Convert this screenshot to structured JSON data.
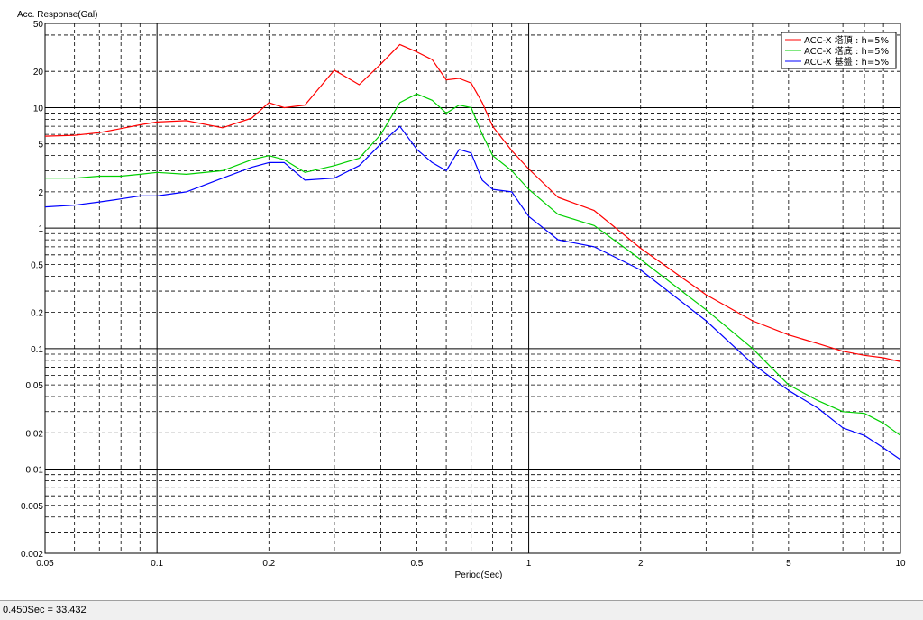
{
  "chart_data": {
    "type": "line",
    "ylabel": "Acc. Response(Gal)",
    "xlabel": "Period(Sec)",
    "x_scale": "log",
    "y_scale": "log",
    "xlim": [
      0.05,
      10
    ],
    "ylim": [
      0.002,
      50
    ],
    "grid": true,
    "legend_position": "top-right",
    "x_tick_labels": [
      "0.05",
      "0.1",
      "0.2",
      "0.5",
      "1",
      "2",
      "5",
      "10"
    ],
    "y_tick_labels": [
      "50",
      "20",
      "10",
      "5",
      "2",
      "1",
      "0.5",
      "0.2",
      "0.1",
      "0.05",
      "0.02",
      "0.01",
      "0.005",
      "0.002"
    ],
    "series": [
      {
        "name": "ACC-X 塔頂 : h=5%",
        "color": "#ff0000",
        "x": [
          0.05,
          0.06,
          0.07,
          0.08,
          0.09,
          0.1,
          0.12,
          0.15,
          0.18,
          0.2,
          0.22,
          0.25,
          0.3,
          0.35,
          0.4,
          0.45,
          0.5,
          0.55,
          0.6,
          0.65,
          0.7,
          0.75,
          0.8,
          0.9,
          1.0,
          1.2,
          1.5,
          2,
          3,
          4,
          5,
          6,
          7,
          8,
          9,
          10
        ],
        "values": [
          5.8,
          5.9,
          6.2,
          6.7,
          7.2,
          7.6,
          7.8,
          6.8,
          8.2,
          11.0,
          10.0,
          10.5,
          20.5,
          15.5,
          23.0,
          33.4,
          29.0,
          25.0,
          17.0,
          17.5,
          16.0,
          11.0,
          7.0,
          4.4,
          3.1,
          1.8,
          1.4,
          0.68,
          0.28,
          0.17,
          0.13,
          0.11,
          0.095,
          0.088,
          0.084,
          0.078
        ]
      },
      {
        "name": "ACC-X 塔底 : h=5%",
        "color": "#00d000",
        "x": [
          0.05,
          0.06,
          0.07,
          0.08,
          0.09,
          0.1,
          0.12,
          0.15,
          0.18,
          0.2,
          0.22,
          0.25,
          0.3,
          0.35,
          0.4,
          0.45,
          0.5,
          0.55,
          0.6,
          0.65,
          0.7,
          0.75,
          0.8,
          0.9,
          1.0,
          1.2,
          1.5,
          2,
          3,
          4,
          5,
          6,
          7,
          8,
          9,
          10
        ],
        "values": [
          2.6,
          2.6,
          2.7,
          2.7,
          2.8,
          2.9,
          2.8,
          3.0,
          3.7,
          4.0,
          3.7,
          2.9,
          3.3,
          3.8,
          6.0,
          11.0,
          13.0,
          11.5,
          9.0,
          10.5,
          10.0,
          6.0,
          4.0,
          3.0,
          2.1,
          1.3,
          1.05,
          0.55,
          0.21,
          0.1,
          0.05,
          0.037,
          0.03,
          0.029,
          0.024,
          0.019
        ]
      },
      {
        "name": "ACC-X 基盤 : h=5%",
        "color": "#0000ff",
        "x": [
          0.05,
          0.06,
          0.07,
          0.08,
          0.09,
          0.1,
          0.12,
          0.15,
          0.18,
          0.2,
          0.22,
          0.25,
          0.3,
          0.35,
          0.4,
          0.45,
          0.5,
          0.55,
          0.6,
          0.65,
          0.7,
          0.75,
          0.8,
          0.9,
          1.0,
          1.2,
          1.5,
          2,
          3,
          4,
          5,
          6,
          7,
          8,
          9,
          10
        ],
        "values": [
          1.5,
          1.55,
          1.65,
          1.75,
          1.85,
          1.85,
          2.0,
          2.6,
          3.2,
          3.5,
          3.5,
          2.5,
          2.6,
          3.3,
          5.0,
          7.0,
          4.5,
          3.5,
          3.0,
          4.5,
          4.2,
          2.5,
          2.1,
          2.0,
          1.25,
          0.8,
          0.7,
          0.45,
          0.17,
          0.075,
          0.045,
          0.032,
          0.022,
          0.019,
          0.015,
          0.012
        ]
      }
    ]
  },
  "status_bar": {
    "text": "0.450Sec = 33.432"
  }
}
